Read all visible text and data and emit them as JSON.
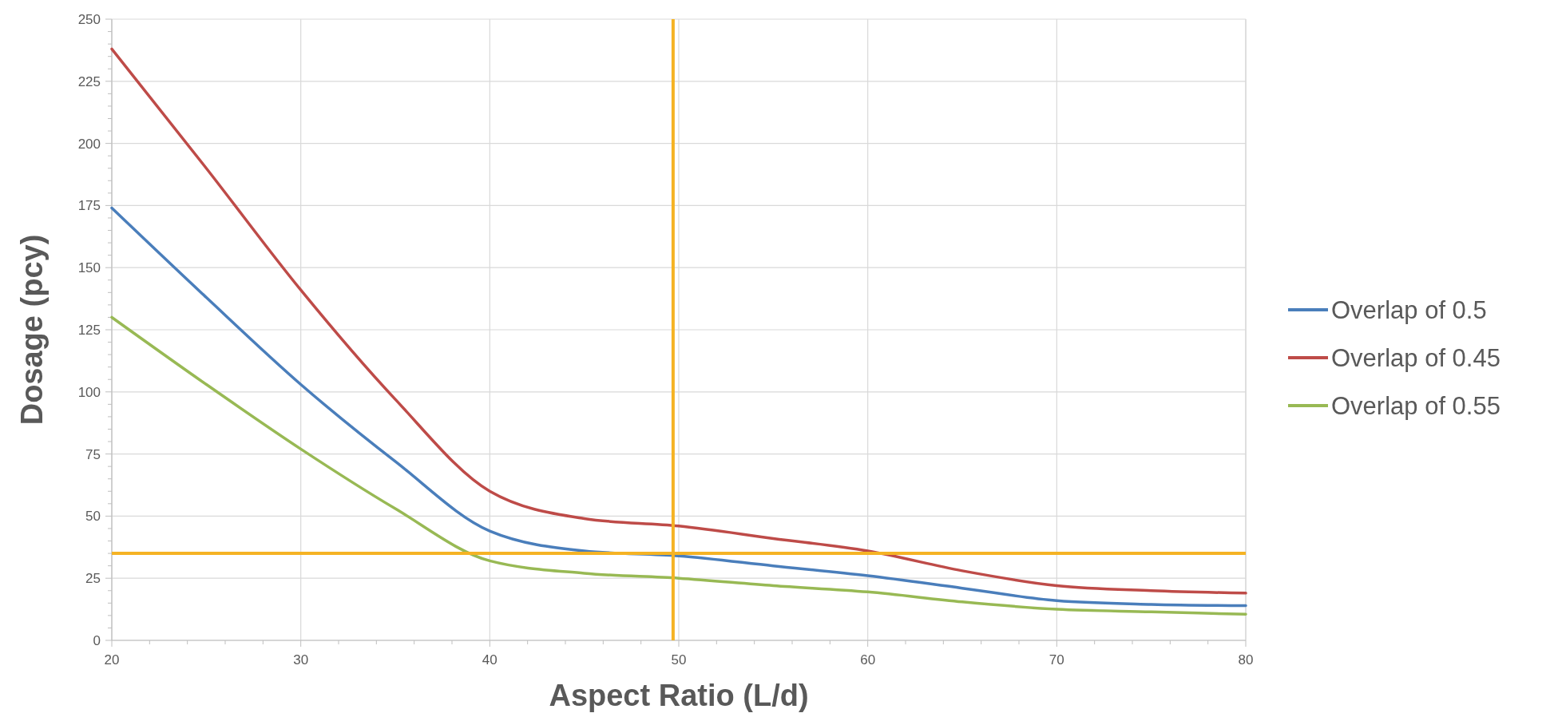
{
  "chart_data": {
    "type": "line",
    "xlabel": "Aspect Ratio (L/d)",
    "ylabel": "Dosage (pcy)",
    "x": [
      20,
      25,
      30,
      35,
      40,
      45,
      50,
      55,
      60,
      65,
      70,
      75,
      80
    ],
    "series": [
      {
        "name": "Overlap of 0.5",
        "color": "#4a7ebb",
        "values": [
          174,
          138,
          103,
          72,
          44,
          36,
          34,
          30,
          26,
          21,
          16,
          14.5,
          14
        ]
      },
      {
        "name": "Overlap of 0.45",
        "color": "#be4b48",
        "values": [
          238,
          190,
          141,
          97,
          60,
          49,
          46,
          41,
          36,
          28,
          22,
          20,
          19
        ]
      },
      {
        "name": "Overlap of 0.55",
        "color": "#98b954",
        "values": [
          130,
          103,
          77,
          53,
          32,
          27,
          25,
          22,
          19.5,
          15.5,
          12.5,
          11.5,
          10.5
        ]
      }
    ],
    "xlim": [
      20,
      80
    ],
    "xticks": [
      20,
      30,
      40,
      50,
      60,
      70,
      80
    ],
    "ylim": [
      0,
      250
    ],
    "yticks": [
      0,
      25,
      50,
      75,
      100,
      125,
      150,
      175,
      200,
      225,
      250
    ],
    "ref_lines": [
      {
        "axis": "y",
        "value": 35,
        "color": "#f5b324"
      },
      {
        "axis": "x",
        "value": 49.7,
        "color": "#f5b324"
      }
    ],
    "grid": true,
    "legend": "right",
    "marker": "none",
    "line_style": "solid"
  }
}
